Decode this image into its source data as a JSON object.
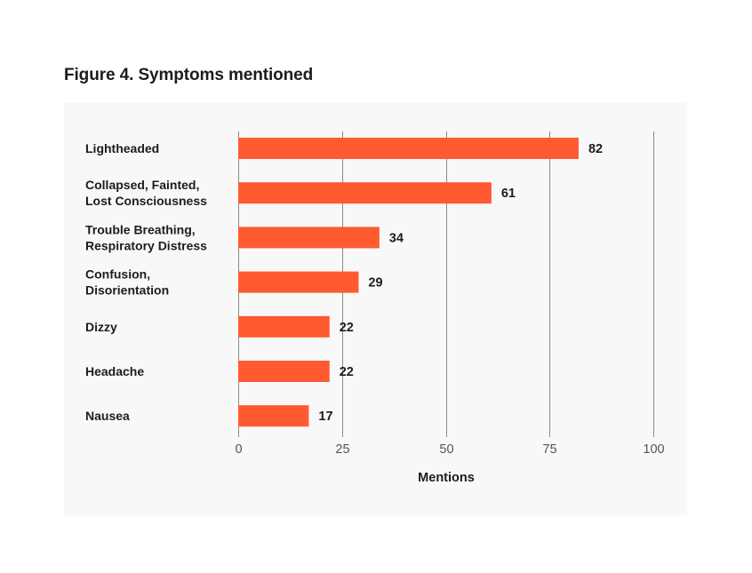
{
  "chart_data": {
    "type": "bar",
    "orientation": "horizontal",
    "title": "Figure 4. Symptoms mentioned",
    "categories": [
      [
        "Lightheaded"
      ],
      [
        "Collapsed, Fainted,",
        "Lost Consciousness"
      ],
      [
        "Trouble Breathing,",
        "Respiratory Distress"
      ],
      [
        "Confusion,",
        "Disorientation"
      ],
      [
        "Dizzy"
      ],
      [
        "Headache"
      ],
      [
        "Nausea"
      ]
    ],
    "values": [
      82,
      61,
      34,
      29,
      22,
      22,
      17
    ],
    "xlabel": "Mentions",
    "ylabel": "",
    "xlim": [
      0,
      100
    ],
    "xticks": [
      0,
      25,
      50,
      75,
      100
    ],
    "grid": true,
    "data_labels": true,
    "bar_color": "#ff5a30",
    "grid_color": "#8a8a8a"
  }
}
